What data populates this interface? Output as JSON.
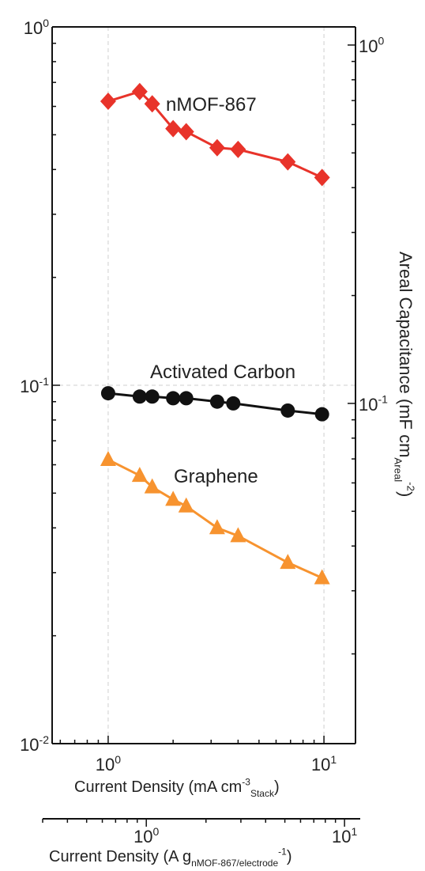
{
  "chart_data": {
    "type": "line",
    "title": "",
    "xscale": "log",
    "yscale": "log",
    "xlim": [
      0.55,
      14
    ],
    "ylim": [
      0.01,
      1
    ],
    "xlabel": "Current Density (mA cm",
    "xlabel_exp": "-3",
    "xlabel_sub": "Stack",
    "xlabel_end": ")",
    "x_ticks": [
      1,
      10
    ],
    "x_tick_labels": [
      {
        "base": "10",
        "exp": "0"
      },
      {
        "base": "10",
        "exp": "1"
      }
    ],
    "y_ticks": [
      0.01,
      0.1,
      1
    ],
    "y_tick_labels": [
      {
        "base": "10",
        "exp": "-2"
      },
      {
        "base": "10",
        "exp": "-1"
      },
      {
        "base": "10",
        "exp": "0"
      }
    ],
    "right_axis": {
      "label": "Areal Capacitance (mF cm",
      "label_sub": "Areal",
      "label_exp": "-2",
      "label_end": ")",
      "ticks": [
        {
          "value": 0.089,
          "base": "10",
          "exp": "-1"
        },
        {
          "value": 0.89,
          "base": "10",
          "exp": "0"
        }
      ]
    },
    "secondary_x_axis": {
      "label": "Current Density (A g",
      "label_sub": "nMOF-867/electrode",
      "label_exp": "-1",
      "label_end": ")",
      "ticks": [
        {
          "value": 1,
          "base": "10",
          "exp": "0"
        },
        {
          "value": 10,
          "base": "10",
          "exp": "1"
        }
      ]
    },
    "grid": "dashed at major ticks",
    "series": [
      {
        "name": "nMOF-867",
        "color": "#e8332a",
        "marker": "diamond",
        "x": [
          1.0,
          1.4,
          1.6,
          2.0,
          2.3,
          3.2,
          4.0,
          6.8,
          9.8
        ],
        "y": [
          0.62,
          0.66,
          0.61,
          0.52,
          0.51,
          0.46,
          0.455,
          0.42,
          0.38
        ]
      },
      {
        "name": "Activated Carbon",
        "color": "#111111",
        "marker": "circle",
        "x": [
          1.0,
          1.4,
          1.6,
          2.0,
          2.3,
          3.2,
          3.8,
          6.8,
          9.8
        ],
        "y": [
          0.095,
          0.093,
          0.093,
          0.092,
          0.092,
          0.09,
          0.089,
          0.085,
          0.083
        ]
      },
      {
        "name": "Graphene",
        "color": "#f7932f",
        "marker": "triangle",
        "x": [
          1.0,
          1.4,
          1.6,
          2.0,
          2.3,
          3.2,
          4.0,
          6.8,
          9.8
        ],
        "y": [
          0.062,
          0.056,
          0.052,
          0.048,
          0.046,
          0.04,
          0.038,
          0.032,
          0.029
        ]
      }
    ]
  }
}
